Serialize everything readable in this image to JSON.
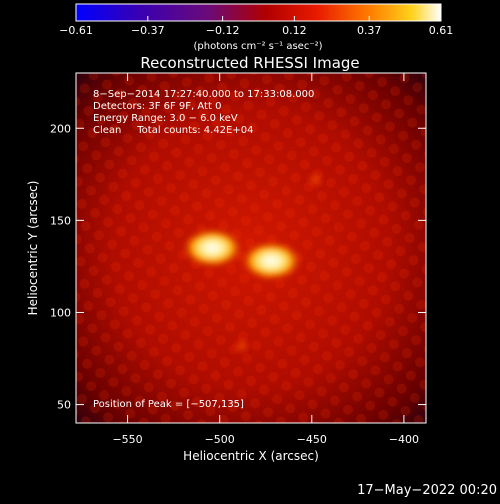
{
  "chart_data": {
    "type": "heatmap",
    "title": "Reconstructed RHESSI Image",
    "xlabel": "Heliocentric X (arcsec)",
    "ylabel": "Heliocentric Y (arcsec)",
    "xlim": [
      -578,
      -388
    ],
    "ylim": [
      40,
      230
    ],
    "x_ticks": [
      -550,
      -500,
      -450,
      -400
    ],
    "y_ticks": [
      50,
      100,
      150,
      200
    ],
    "x_tick_labels": [
      "−550",
      "−500",
      "−450",
      "−400"
    ],
    "y_tick_labels": [
      "50",
      "100",
      "150",
      "200"
    ],
    "colorbar": {
      "range": [
        -0.61,
        0.61
      ],
      "tick_values": [
        -0.61,
        -0.37,
        -0.12,
        0.12,
        0.37,
        0.61
      ],
      "tick_labels": [
        "−0.61",
        "−0.37",
        "−0.12",
        "0.12",
        "0.37",
        "0.61"
      ],
      "unit_label": "(photons cm⁻² s⁻¹ asec⁻²)"
    },
    "annotations": [
      "8−Sep−2014 17:27:40.000 to 17:33:08.000",
      "Detectors: 3F 6F 9F, Att 0",
      "Energy Range: 3.0 − 6.0 keV",
      "Clean     Total counts: 4.42E+04"
    ],
    "peak_label": "Position of Peak = [−507,135]",
    "sources": [
      {
        "x": -504,
        "y": 135,
        "peak": 0.61
      },
      {
        "x": -472,
        "y": 128,
        "peak": 0.5
      },
      {
        "x": -448,
        "y": 172,
        "peak": 0.12
      },
      {
        "x": -488,
        "y": 82,
        "peak": 0.08
      }
    ],
    "grid": false
  },
  "footer_date": "17−May−2022 00:20"
}
